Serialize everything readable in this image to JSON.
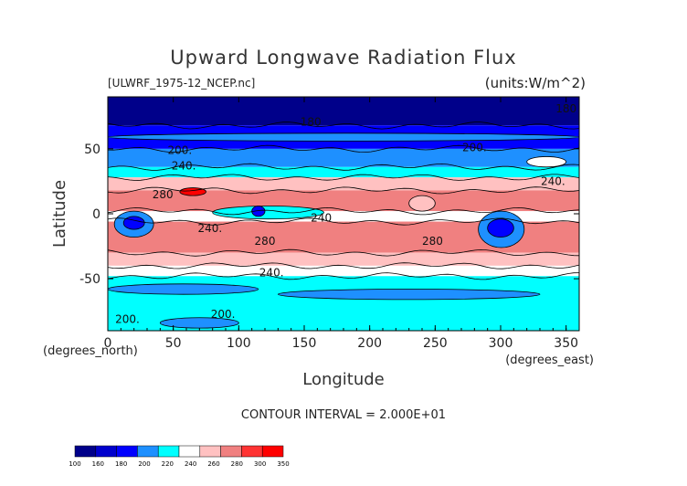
{
  "chart_data": {
    "type": "heatmap",
    "title": "Upward Longwave Radiation Flux",
    "file_label": "[ULWRF_1975-12_NCEP.nc]",
    "units_label": "(units:W/m^2)",
    "xlabel": "Longitude",
    "ylabel": "Latitude",
    "x_unit_label": "(degrees_east)",
    "y_unit_label": "(degrees_north)",
    "xlim": [
      0,
      360
    ],
    "ylim": [
      -90,
      90
    ],
    "x_ticks": [
      0,
      50,
      100,
      150,
      200,
      250,
      300,
      350
    ],
    "y_ticks": [
      -50,
      0,
      50
    ],
    "contour_interval_text": "CONTOUR INTERVAL = 2.000E+01",
    "contour_labels": [
      {
        "text": "180",
        "lon": 350,
        "lat": 78
      },
      {
        "text": "180",
        "lon": 155,
        "lat": 68
      },
      {
        "text": "200.",
        "lon": 55,
        "lat": 46
      },
      {
        "text": "200.",
        "lon": 280,
        "lat": 48
      },
      {
        "text": "240.",
        "lon": 58,
        "lat": 34
      },
      {
        "text": "240.",
        "lon": 340,
        "lat": 22
      },
      {
        "text": "280",
        "lon": 42,
        "lat": 12
      },
      {
        "text": "240",
        "lon": 163,
        "lat": -6
      },
      {
        "text": "240.",
        "lon": 78,
        "lat": -14
      },
      {
        "text": "280",
        "lon": 120,
        "lat": -24
      },
      {
        "text": "280",
        "lon": 248,
        "lat": -24
      },
      {
        "text": "240.",
        "lon": 125,
        "lat": -48
      },
      {
        "text": "200.",
        "lon": 15,
        "lat": -84
      },
      {
        "text": "200.",
        "lon": 88,
        "lat": -80
      }
    ],
    "colorbar": {
      "levels": [
        "100",
        "160",
        "180",
        "200",
        "220",
        "240",
        "260",
        "280",
        "300",
        "350"
      ],
      "colors": [
        "#00008a",
        "#0000cd",
        "#0000ff",
        "#1e90ff",
        "#00ffff",
        "#ffffff",
        "#ffc1c1",
        "#f08080",
        "#ff3333",
        "#ff0000"
      ]
    },
    "bands": [
      {
        "lat_min": 68,
        "lat_max": 90,
        "level_index": 0
      },
      {
        "lat_min": 50,
        "lat_max": 68,
        "level_index": 2
      },
      {
        "lat_min": 36,
        "lat_max": 50,
        "level_index": 3
      },
      {
        "lat_min": 28,
        "lat_max": 36,
        "level_index": 4
      },
      {
        "lat_min": 18,
        "lat_max": 28,
        "level_index": 6
      },
      {
        "lat_min": 2,
        "lat_max": 18,
        "level_index": 7
      },
      {
        "lat_min": -6,
        "lat_max": 2,
        "level_index": 5
      },
      {
        "lat_min": -30,
        "lat_max": -6,
        "level_index": 7
      },
      {
        "lat_min": -40,
        "lat_max": -30,
        "level_index": 6
      },
      {
        "lat_min": -48,
        "lat_max": -40,
        "level_index": 5
      },
      {
        "lat_min": -90,
        "lat_max": -48,
        "level_index": 4
      }
    ],
    "features": [
      {
        "lon_min": 5,
        "lon_max": 35,
        "lat_min": -18,
        "lat_max": 2,
        "level_index": 3
      },
      {
        "lon_min": 12,
        "lon_max": 28,
        "lat_min": -12,
        "lat_max": -2,
        "level_index": 2
      },
      {
        "lon_min": 283,
        "lon_max": 318,
        "lat_min": -26,
        "lat_max": 2,
        "level_index": 3
      },
      {
        "lon_min": 290,
        "lon_max": 310,
        "lat_min": -18,
        "lat_max": -4,
        "level_index": 2
      },
      {
        "lon_min": 55,
        "lon_max": 75,
        "lat_min": 14,
        "lat_max": 20,
        "level_index": 9
      },
      {
        "lon_min": 80,
        "lon_max": 165,
        "lat_min": -4,
        "lat_max": 6,
        "level_index": 4
      },
      {
        "lon_min": 110,
        "lon_max": 120,
        "lat_min": -2,
        "lat_max": 6,
        "level_index": 2
      },
      {
        "lon_min": 0,
        "lon_max": 115,
        "lat_min": -62,
        "lat_max": -54,
        "level_index": 3
      },
      {
        "lon_min": 130,
        "lon_max": 330,
        "lat_min": -66,
        "lat_max": -58,
        "level_index": 3
      },
      {
        "lon_min": 40,
        "lon_max": 100,
        "lat_min": -88,
        "lat_max": -80,
        "level_index": 3
      },
      {
        "lon_min": 0,
        "lon_max": 360,
        "lat_min": 56,
        "lat_max": 62,
        "level_index": 3
      },
      {
        "lon_min": 320,
        "lon_max": 350,
        "lat_min": 36,
        "lat_max": 44,
        "level_index": 5
      },
      {
        "lon_min": 230,
        "lon_max": 250,
        "lat_min": 2,
        "lat_max": 14,
        "level_index": 6
      }
    ]
  }
}
